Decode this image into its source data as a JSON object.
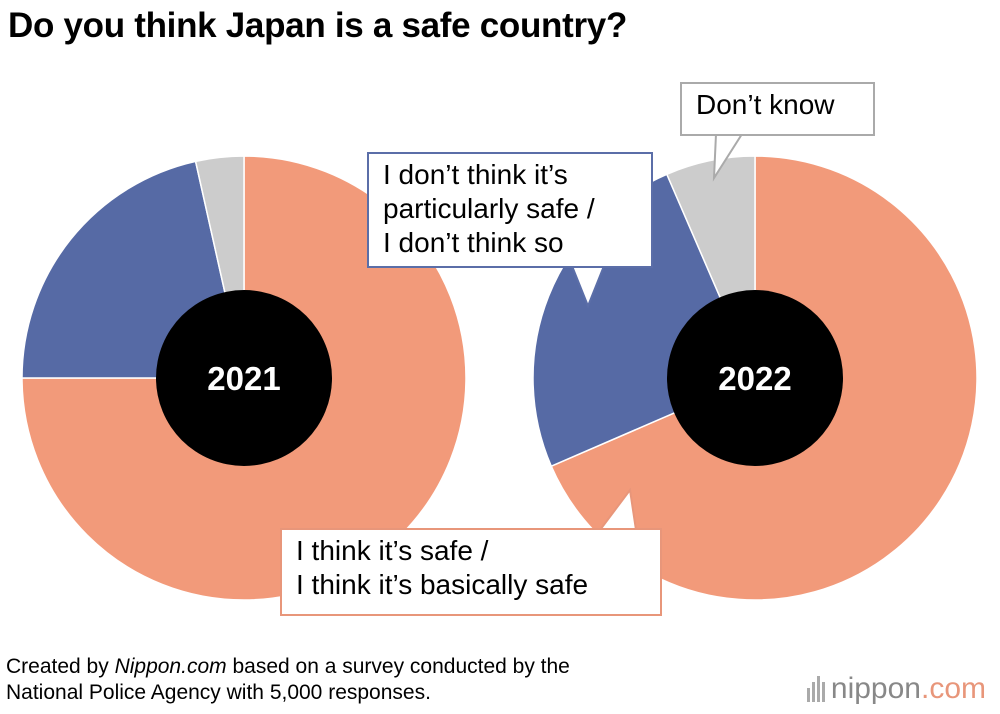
{
  "title": "Do you think Japan is a safe country?",
  "chart_data": [
    {
      "type": "pie",
      "center_label": "2021",
      "categories": [
        "I think it’s safe / I think it’s basically safe",
        "I don’t think it’s particularly safe / I don’t think so",
        "Don’t know"
      ],
      "values": [
        75.0,
        21.5,
        3.5
      ],
      "colors": [
        "#f29a7a",
        "#566aa5",
        "#cccccc"
      ]
    },
    {
      "type": "pie",
      "center_label": "2022",
      "categories": [
        "I think it’s safe / I think it’s basically safe",
        "I don’t think it’s particularly safe / I don’t think so",
        "Don’t know"
      ],
      "values": [
        68.5,
        25.0,
        6.5
      ],
      "colors": [
        "#f29a7a",
        "#566aa5",
        "#cccccc"
      ]
    }
  ],
  "callouts": {
    "dont_know": "Don’t know",
    "unsafe_line1": "I don’t think it’s",
    "unsafe_line2": "particularly safe /",
    "unsafe_line3": "I don’t think so",
    "safe_line1": "I think it’s safe /",
    "safe_line2": "I think it’s basically safe"
  },
  "footnote": {
    "prefix": "Created by ",
    "source": "Nippon.com",
    "rest_line1": " based on a survey conducted by the",
    "line2": "National Police Agency with 5,000 responses."
  },
  "brand": {
    "name": "nippon",
    "suffix": ".com"
  },
  "colors": {
    "safe": "#f29a7a",
    "unsafe": "#566aa5",
    "dont_know": "#cccccc",
    "center": "#000000"
  }
}
